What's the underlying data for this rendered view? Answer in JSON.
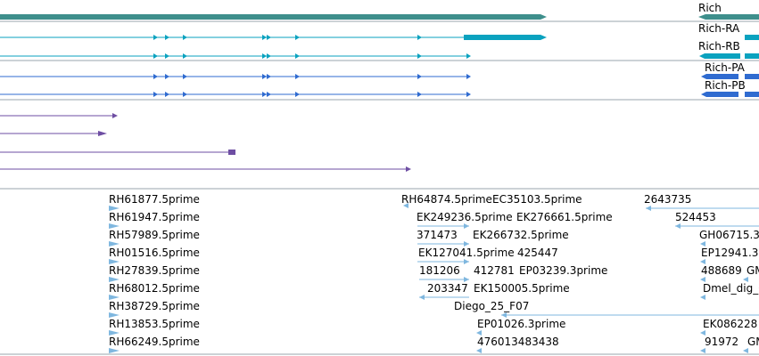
{
  "colors": {
    "gene": "#3e8f8c",
    "mrna_rna": "#0aa2bf",
    "mrna_protein": "#2f6bd0",
    "prediction": "#6e4ea3",
    "est": "#7fb7df",
    "divider": "#9aa4ad",
    "text": "#000000"
  },
  "tracks": {
    "gene": {
      "label": "Rich"
    },
    "transcripts": [
      {
        "label": "Rich-RA"
      },
      {
        "label": "Rich-RB"
      }
    ],
    "proteins": [
      {
        "label": "Rich-PA"
      },
      {
        "label": "Rich-PB"
      }
    ],
    "est_labels": [
      "RH61877.5prime",
      "RH61947.5prime",
      "RH57989.5prime",
      "RH01516.5prime",
      "RH27839.5prime",
      "RH68012.5prime",
      "RH38729.5prime",
      "RH13853.5prime",
      "RH66249.5prime",
      "RH64874.5prime",
      "EC35103.5prime",
      "EK249236.5prime",
      "EK276661.5prime",
      "371473",
      "EK266732.5prime",
      "EK127041.5prime",
      "425447",
      "181206",
      "412781",
      "EP03239.3prime",
      "203347",
      "EK150005.5prime",
      "Diego_25_F07",
      "EP01026.3prime",
      "476013483438",
      "2643735",
      "524453",
      "GH06715.3",
      "EP12941.3",
      "488689",
      "GM",
      "Dmel_dig_C",
      "EK086228",
      "91972",
      "GM"
    ]
  }
}
